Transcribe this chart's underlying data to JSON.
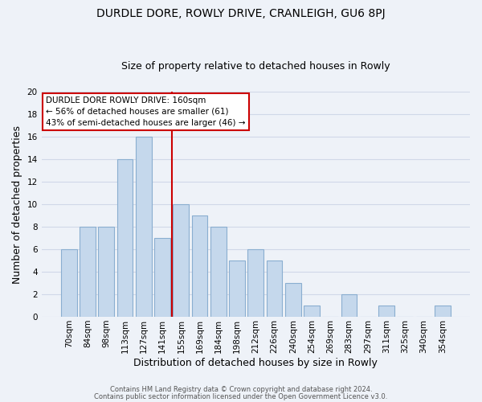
{
  "title": "DURDLE DORE, ROWLY DRIVE, CRANLEIGH, GU6 8PJ",
  "subtitle": "Size of property relative to detached houses in Rowly",
  "xlabel": "Distribution of detached houses by size in Rowly",
  "ylabel": "Number of detached properties",
  "bar_labels": [
    "70sqm",
    "84sqm",
    "98sqm",
    "113sqm",
    "127sqm",
    "141sqm",
    "155sqm",
    "169sqm",
    "184sqm",
    "198sqm",
    "212sqm",
    "226sqm",
    "240sqm",
    "254sqm",
    "269sqm",
    "283sqm",
    "297sqm",
    "311sqm",
    "325sqm",
    "340sqm",
    "354sqm"
  ],
  "bar_values": [
    6,
    8,
    8,
    14,
    16,
    7,
    10,
    9,
    8,
    5,
    6,
    5,
    3,
    1,
    0,
    2,
    0,
    1,
    0,
    0,
    1
  ],
  "bar_color": "#c5d8ec",
  "bar_edge_color": "#8aaed0",
  "ylim": [
    0,
    20
  ],
  "yticks": [
    0,
    2,
    4,
    6,
    8,
    10,
    12,
    14,
    16,
    18,
    20
  ],
  "vline_x": 5.5,
  "vline_color": "#cc0000",
  "annotation_box_color": "#ffffff",
  "annotation_box_edge_color": "#cc0000",
  "annotation_line1": "DURDLE DORE ROWLY DRIVE: 160sqm",
  "annotation_line2": "← 56% of detached houses are smaller (61)",
  "annotation_line3": "43% of semi-detached houses are larger (46) →",
  "footer1": "Contains HM Land Registry data © Crown copyright and database right 2024.",
  "footer2": "Contains public sector information licensed under the Open Government Licence v3.0.",
  "grid_color": "#d0d8e8",
  "bg_color": "#eef2f8",
  "title_fontsize": 10,
  "subtitle_fontsize": 9,
  "xlabel_fontsize": 9,
  "ylabel_fontsize": 9,
  "tick_fontsize": 7.5,
  "annotation_fontsize": 7.5,
  "footer_fontsize": 6
}
